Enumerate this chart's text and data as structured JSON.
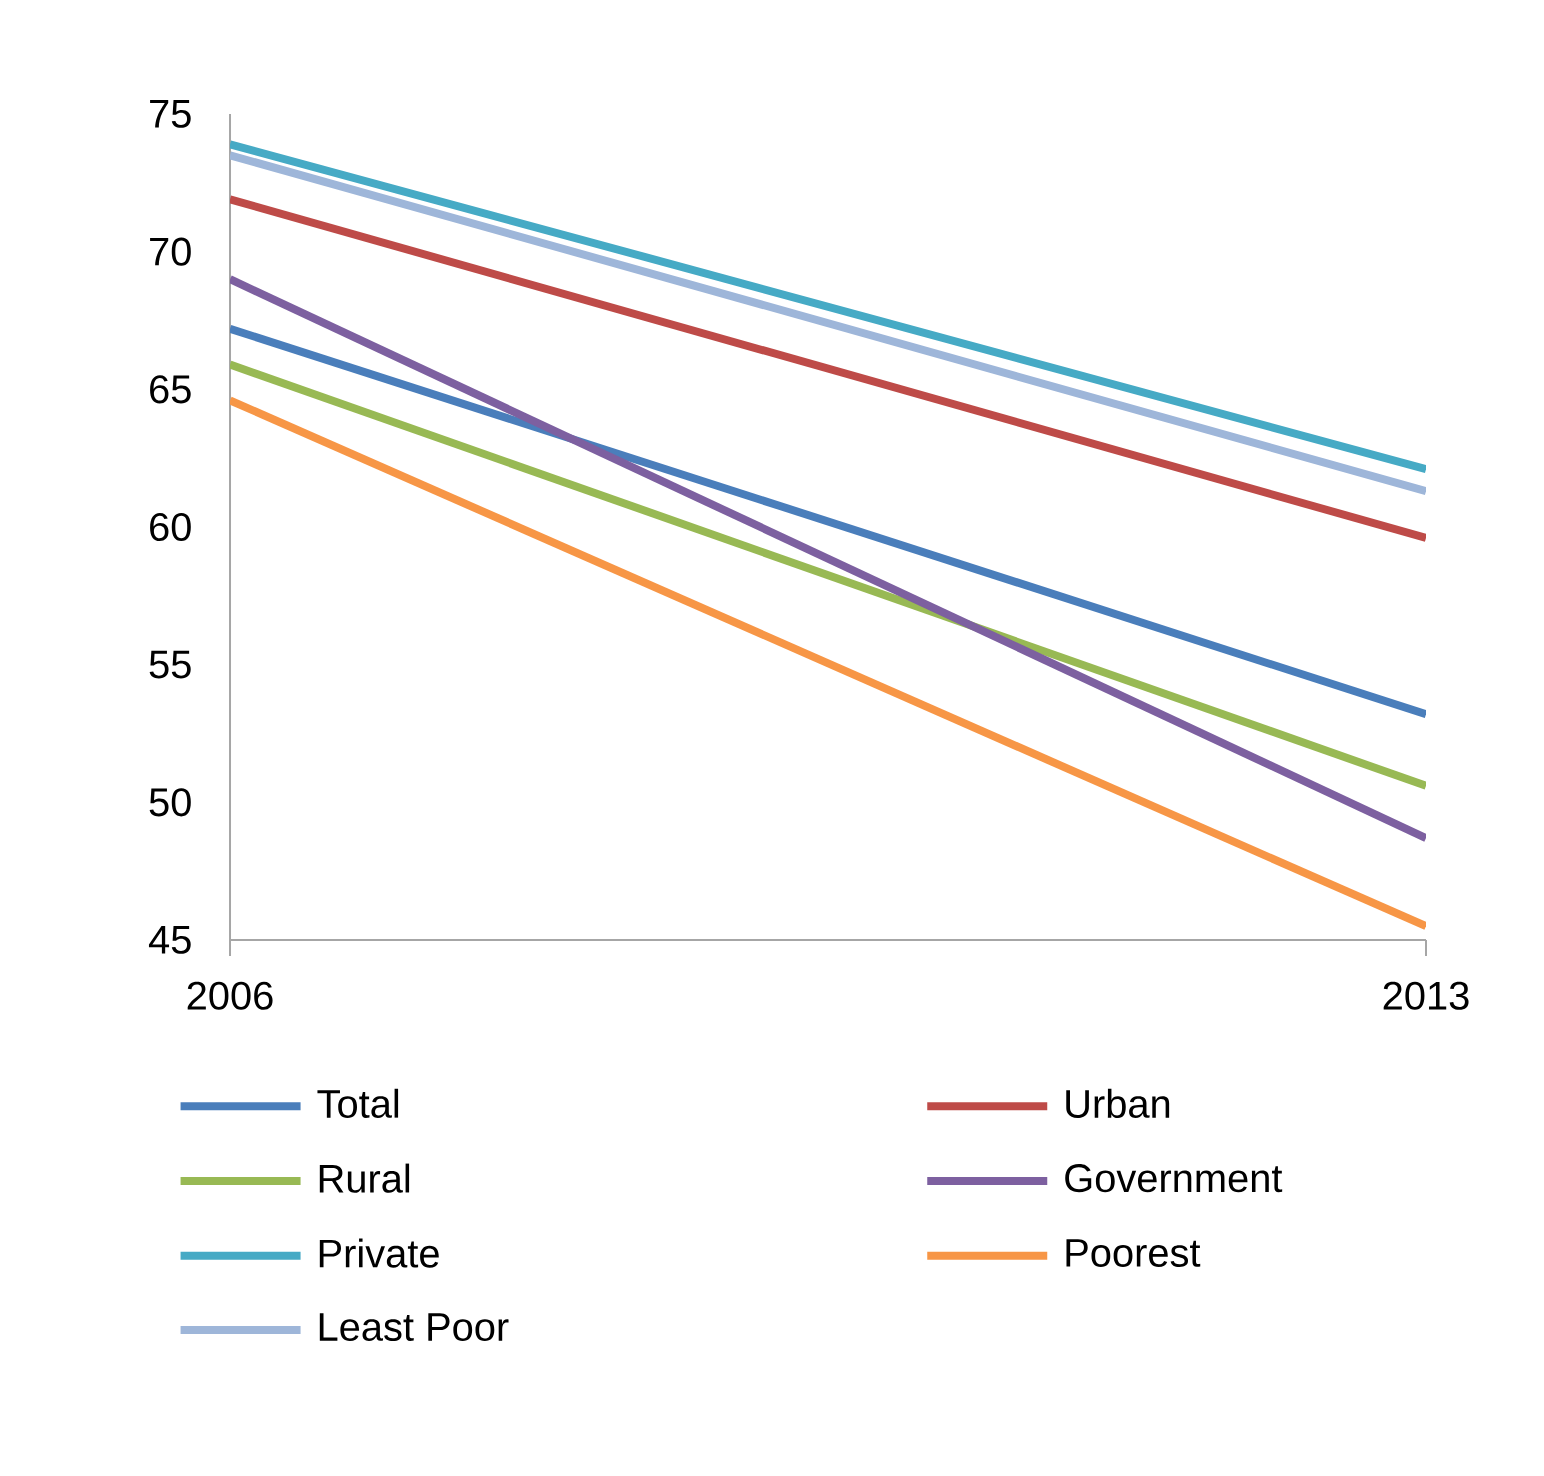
{
  "chart_data": {
    "type": "line",
    "x": [
      2006,
      2013
    ],
    "xlim": [
      2006,
      2013
    ],
    "xticks": [
      2006,
      2013
    ],
    "ylim": [
      45,
      75
    ],
    "yticks": [
      45,
      50,
      55,
      60,
      65,
      70,
      75
    ],
    "grid": false,
    "legend": "bottom",
    "marker": "none",
    "line_style": "solid",
    "series": [
      {
        "name": "Total",
        "color": "#4a7ebb",
        "values": [
          67.2,
          53.2
        ]
      },
      {
        "name": "Urban",
        "color": "#be4b48",
        "values": [
          71.9,
          59.6
        ]
      },
      {
        "name": "Rural",
        "color": "#98b954",
        "values": [
          65.9,
          50.6
        ]
      },
      {
        "name": "Government",
        "color": "#7d60a0",
        "values": [
          69.0,
          48.7
        ]
      },
      {
        "name": "Private",
        "color": "#46aac5",
        "values": [
          73.9,
          62.1
        ]
      },
      {
        "name": "Poorest",
        "color": "#f79646",
        "values": [
          64.6,
          45.5
        ]
      },
      {
        "name": "Least Poor",
        "color": "#9eb6d9",
        "values": [
          73.5,
          61.3
        ]
      }
    ]
  }
}
